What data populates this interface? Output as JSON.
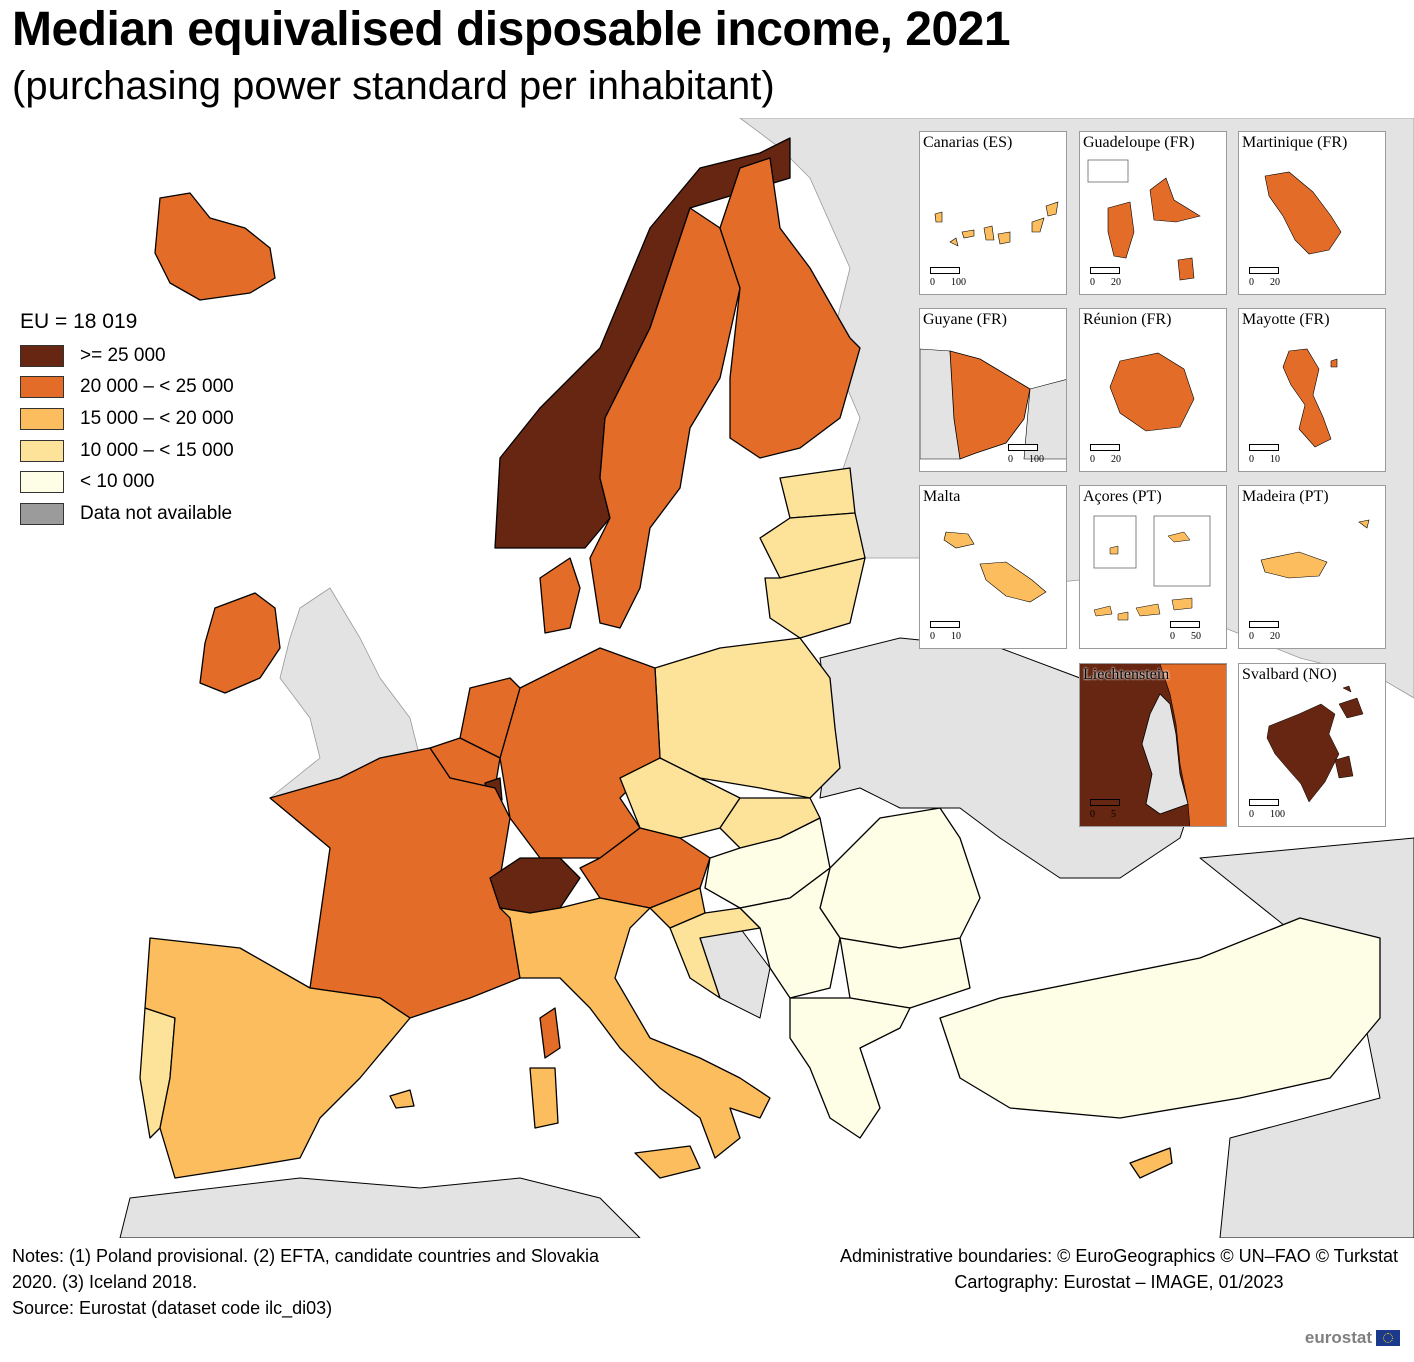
{
  "title": "Median equivalised disposable income, 2021",
  "subtitle": "(purchasing power standard per inhabitant)",
  "legend": {
    "heading": "EU = 18 019",
    "items": [
      {
        "label": ">= 25 000",
        "color": "#662611"
      },
      {
        "label": "20 000 – < 25 000",
        "color": "#e36d28"
      },
      {
        "label": "15 000 – < 20 000",
        "color": "#fbbd5d"
      },
      {
        "label": "10 000 – < 15 000",
        "color": "#fde39a"
      },
      {
        "label": "< 10 000",
        "color": "#fefde6"
      },
      {
        "label": "Data not available",
        "color": "#9b9b9b"
      }
    ]
  },
  "colors": {
    "sea": "#ffffff",
    "non_covered": "#e3e3e3",
    "border": "#000000"
  },
  "insets": [
    {
      "title": "Canarias (ES)",
      "scale": [
        "0",
        "100"
      ]
    },
    {
      "title": "Guadeloupe (FR)",
      "scale": [
        "0",
        "20"
      ]
    },
    {
      "title": "Martinique (FR)",
      "scale": [
        "0",
        "20"
      ]
    },
    {
      "title": "Guyane (FR)",
      "scale": [
        "0",
        "100"
      ]
    },
    {
      "title": "Réunion (FR)",
      "scale": [
        "0",
        "20"
      ]
    },
    {
      "title": "Mayotte (FR)",
      "scale": [
        "0",
        "10"
      ]
    },
    {
      "title": "Malta",
      "scale": [
        "0",
        "10"
      ]
    },
    {
      "title": "Açores (PT)",
      "scale": [
        "0",
        "50"
      ]
    },
    {
      "title": "Madeira (PT)",
      "scale": [
        "0",
        "20"
      ]
    },
    {
      "title": "Liechtenstein",
      "scale": [
        "0",
        "5"
      ]
    },
    {
      "title": "Svalbard (NO)",
      "scale": [
        "0",
        "100"
      ]
    }
  ],
  "notes": {
    "line1": "Notes: (1) Poland provisional. (2) EFTA, candidate countries and Slovakia",
    "line2": "2020. (3) Iceland 2018.",
    "source": "Source: Eurostat (dataset code ilc_di03)"
  },
  "credits": {
    "line1": "Administrative boundaries: © EuroGeographics © UN–FAO © Turkstat",
    "line2": "Cartography: Eurostat – IMAGE, 01/2023"
  },
  "logo_text": "eurostat"
}
